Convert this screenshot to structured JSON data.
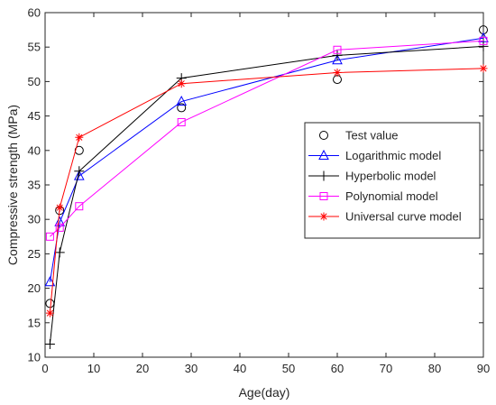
{
  "chart_data": {
    "type": "line",
    "xlabel": "Age(day)",
    "ylabel": "Compressive strength (MPa)",
    "xlim": [
      0,
      90
    ],
    "ylim": [
      10,
      60
    ],
    "xticks": [
      0,
      10,
      20,
      30,
      40,
      50,
      60,
      70,
      80,
      90
    ],
    "yticks": [
      10,
      15,
      20,
      25,
      30,
      35,
      40,
      45,
      50,
      55,
      60
    ],
    "grid": false,
    "legend_position": "right",
    "series": [
      {
        "name": "Test value",
        "color": "#000000",
        "marker": "circle",
        "line": false,
        "x": [
          1,
          3,
          7,
          28,
          60,
          90
        ],
        "y": [
          17.8,
          31.3,
          40.0,
          46.2,
          50.3,
          57.5
        ]
      },
      {
        "name": "Logarithmic model",
        "color": "#0000ff",
        "marker": "triangle",
        "line": true,
        "x": [
          1,
          3,
          7,
          28,
          60,
          90
        ],
        "y": [
          20.9,
          29.6,
          36.3,
          47.1,
          53.1,
          56.3
        ]
      },
      {
        "name": "Hyperbolic model",
        "color": "#000000",
        "marker": "plus",
        "line": true,
        "x": [
          1,
          3,
          7,
          28,
          60,
          90
        ],
        "y": [
          11.9,
          25.2,
          37.0,
          50.5,
          53.8,
          55.1
        ]
      },
      {
        "name": "Polynomial model",
        "color": "#ff00ff",
        "marker": "square",
        "line": true,
        "x": [
          1,
          3,
          7,
          28,
          60,
          90
        ],
        "y": [
          27.5,
          28.8,
          31.9,
          44.1,
          54.6,
          55.9
        ]
      },
      {
        "name": "Universal curve model",
        "color": "#ff0000",
        "marker": "asterisk",
        "line": true,
        "x": [
          1,
          3,
          7,
          28,
          60,
          90
        ],
        "y": [
          16.4,
          31.7,
          41.9,
          49.7,
          51.3,
          51.9
        ]
      }
    ]
  }
}
